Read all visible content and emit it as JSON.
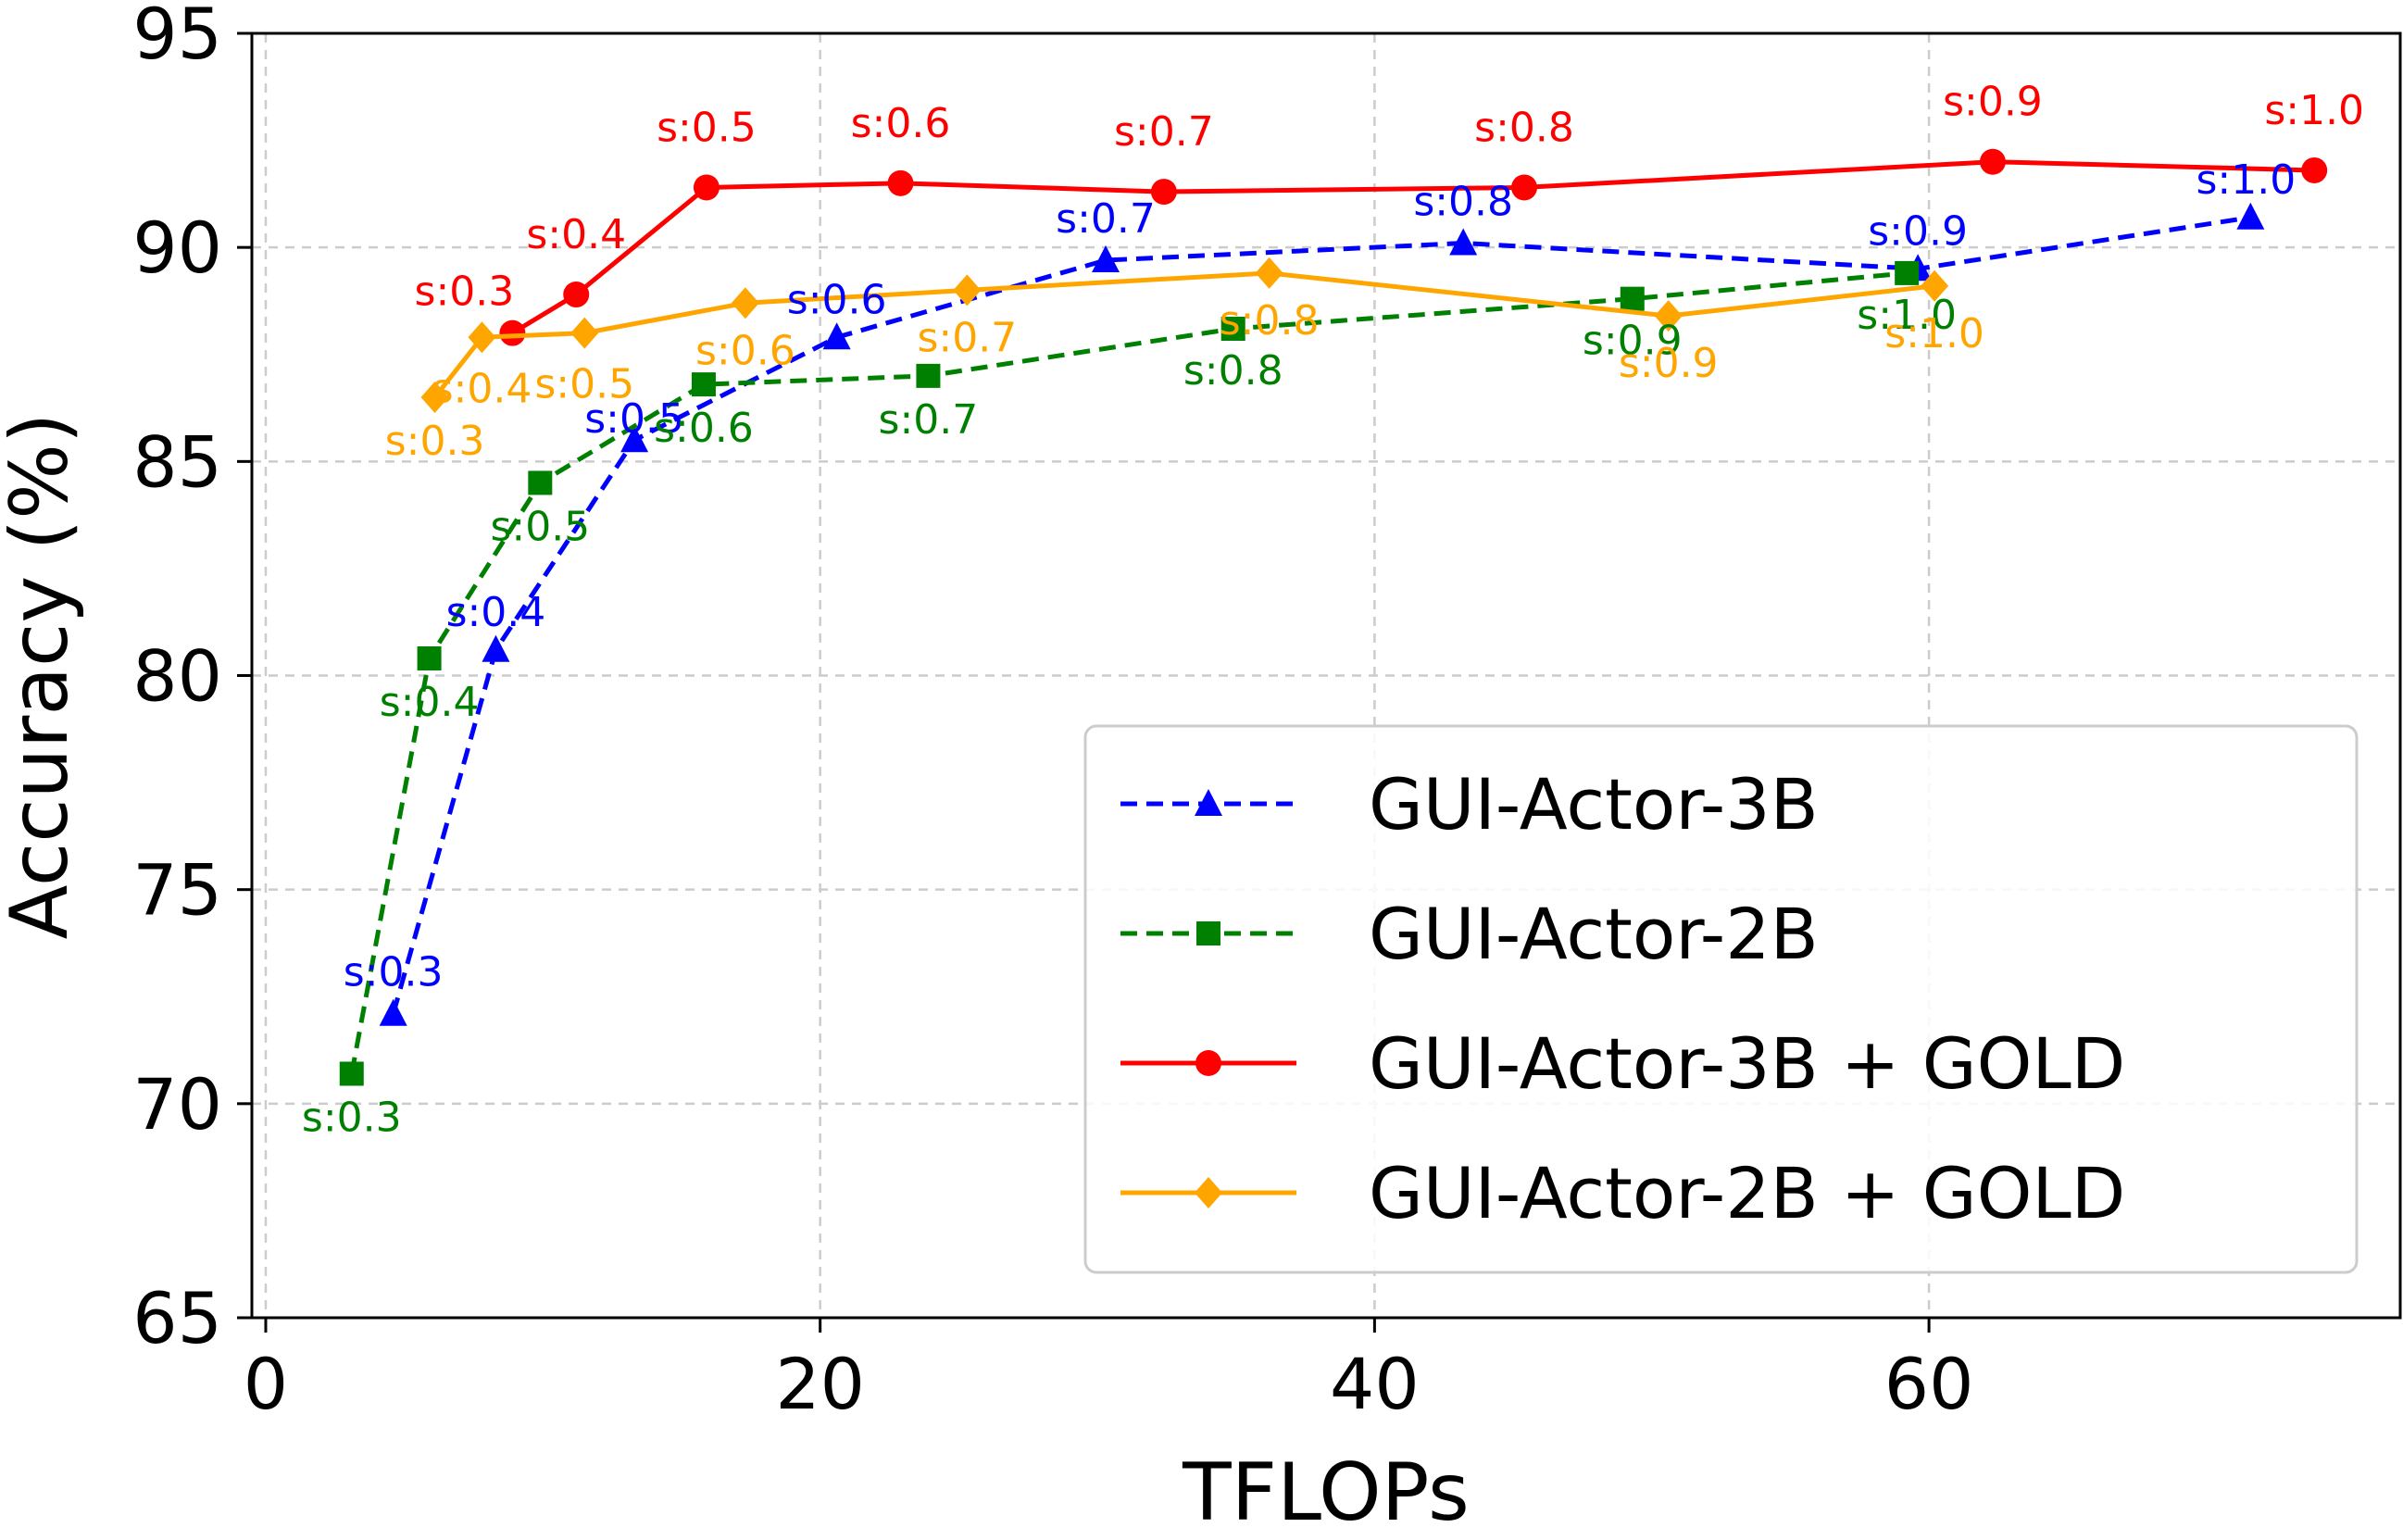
{
  "chart_data": {
    "type": "line",
    "xlabel": "TFLOPs",
    "ylabel": "Accuracy (%)",
    "xlim": [
      -0.5,
      77
    ],
    "ylim": [
      65,
      95
    ],
    "xticks": [
      0,
      20,
      40,
      60
    ],
    "yticks": [
      65,
      70,
      75,
      80,
      85,
      90,
      95
    ],
    "grid": true,
    "legend_position": "lower-right",
    "series": [
      {
        "name": "GUI-Actor-3B",
        "color": "#0000ff",
        "line_style": "dashed",
        "marker": "triangle",
        "x": [
          4.6,
          8.3,
          13.3,
          20.6,
          30.3,
          43.2,
          59.6,
          71.6
        ],
        "y": [
          72.1,
          80.6,
          85.5,
          87.9,
          89.7,
          90.1,
          89.5,
          90.7
        ],
        "labels": [
          "s:0.3",
          "s:0.4",
          "s:0.5",
          "s:0.6",
          "s:0.7",
          "s:0.8",
          "s:0.9",
          "s:1.0"
        ]
      },
      {
        "name": "GUI-Actor-2B",
        "color": "#008000",
        "line_style": "dashed",
        "marker": "square",
        "x": [
          3.1,
          5.9,
          9.9,
          15.8,
          23.9,
          34.9,
          49.3,
          59.2
        ],
        "y": [
          70.7,
          80.4,
          84.5,
          86.8,
          87.0,
          88.1,
          88.8,
          89.4
        ],
        "labels": [
          "s:0.3",
          "s:0.4",
          "s:0.5",
          "s:0.6",
          "s:0.7",
          "s:0.8",
          "s:0.9",
          "s:1.0"
        ]
      },
      {
        "name": "GUI-Actor-3B + GOLD",
        "color": "#ff0000",
        "line_style": "solid",
        "marker": "circle",
        "x": [
          8.9,
          11.2,
          15.9,
          22.9,
          32.4,
          45.4,
          62.3,
          73.9
        ],
        "y": [
          88.0,
          88.9,
          91.4,
          91.5,
          91.3,
          91.4,
          92.0,
          91.8
        ],
        "labels": [
          "s:0.3",
          "s:0.4",
          "s:0.5",
          "s:0.6",
          "s:0.7",
          "s:0.8",
          "s:0.9",
          "s:1.0"
        ]
      },
      {
        "name": "GUI-Actor-2B + GOLD",
        "color": "#ffa500",
        "line_style": "solid",
        "marker": "diamond",
        "x": [
          6.1,
          7.8,
          11.5,
          17.3,
          25.3,
          36.2,
          50.6,
          60.2
        ],
        "y": [
          86.5,
          87.9,
          88.0,
          88.7,
          89.0,
          89.4,
          88.4,
          89.1
        ],
        "labels": [
          "s:0.3",
          "s:0.4",
          "s:0.5",
          "s:0.6",
          "s:0.7",
          "s:0.8",
          "s:0.9",
          "s:1.0"
        ]
      }
    ]
  }
}
